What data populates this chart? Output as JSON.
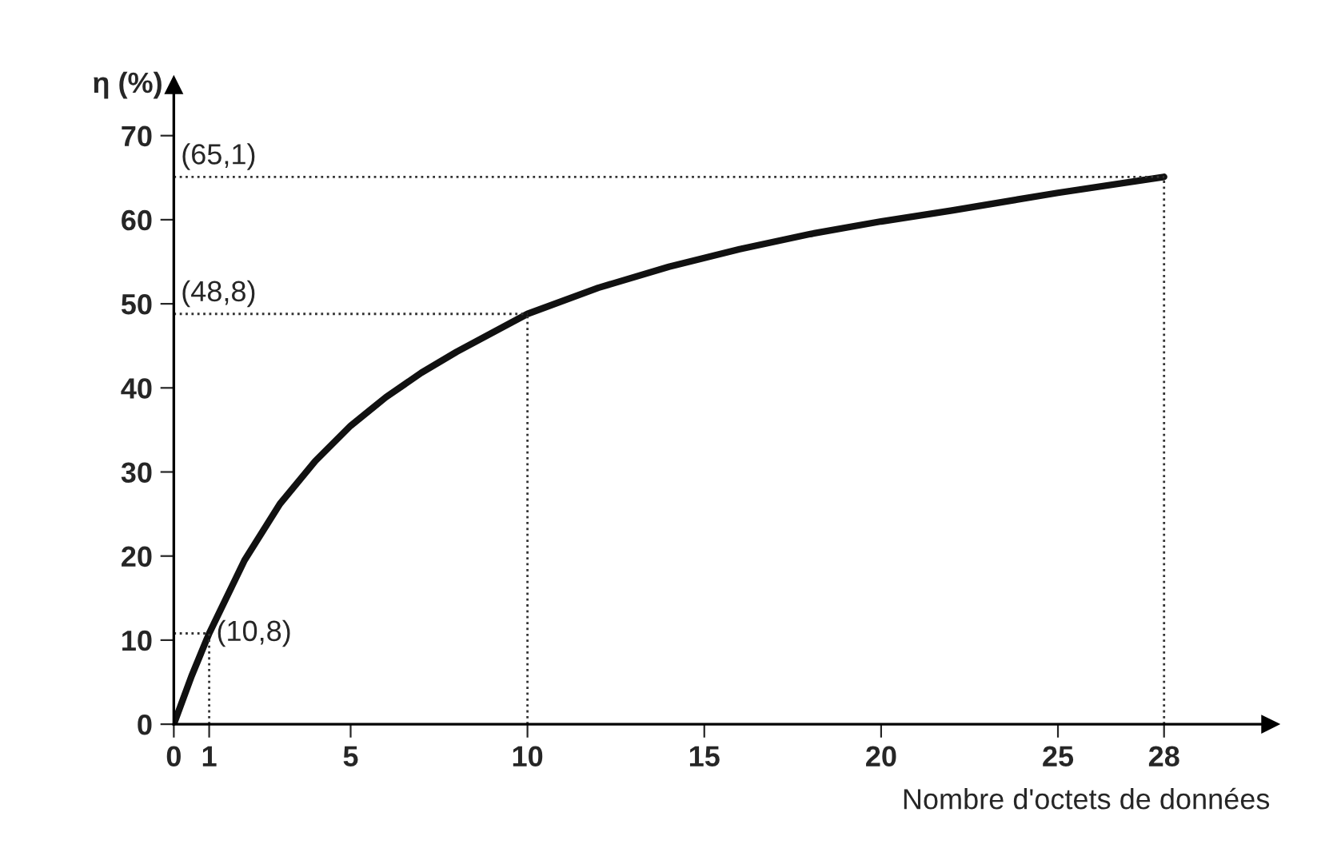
{
  "chart_data": {
    "type": "line",
    "xlabel": "Nombre d'octets de données",
    "ylabel": "η (%)",
    "x": [
      0,
      0.5,
      1,
      2,
      3,
      4,
      5,
      6,
      7,
      8,
      10,
      12,
      14,
      16,
      18,
      20,
      22,
      25,
      28
    ],
    "series": [
      {
        "color": "#111111",
        "values": [
          0,
          5.7,
          10.8,
          19.5,
          26.2,
          31.3,
          35.5,
          38.9,
          41.8,
          44.3,
          48.8,
          51.9,
          54.4,
          56.5,
          58.3,
          59.8,
          61.1,
          63.2,
          65.1
        ]
      }
    ],
    "xlim": [
      0,
      31
    ],
    "ylim": [
      0,
      76
    ],
    "xticks": [
      0,
      1,
      5,
      10,
      15,
      20,
      25,
      28
    ],
    "yticks": [
      0,
      10,
      20,
      30,
      40,
      50,
      60,
      70
    ],
    "ref_lines": [
      {
        "axis": "y",
        "value": 10.8,
        "label": "(10,8)",
        "line_style": "dotted",
        "color": "#333333"
      },
      {
        "axis": "y",
        "value": 48.8,
        "label": "(48,8)",
        "line_style": "dotted",
        "color": "#333333"
      },
      {
        "axis": "y",
        "value": 65.1,
        "label": "(65,1)",
        "line_style": "dotted",
        "color": "#333333"
      },
      {
        "axis": "x",
        "value": 1,
        "line_style": "dotted",
        "color": "#333333"
      },
      {
        "axis": "x",
        "value": 10,
        "line_style": "dotted",
        "color": "#333333"
      },
      {
        "axis": "x",
        "value": 28,
        "line_style": "dotted",
        "color": "#333333"
      }
    ],
    "legend": false,
    "marker": "none",
    "line_style": "solid"
  }
}
